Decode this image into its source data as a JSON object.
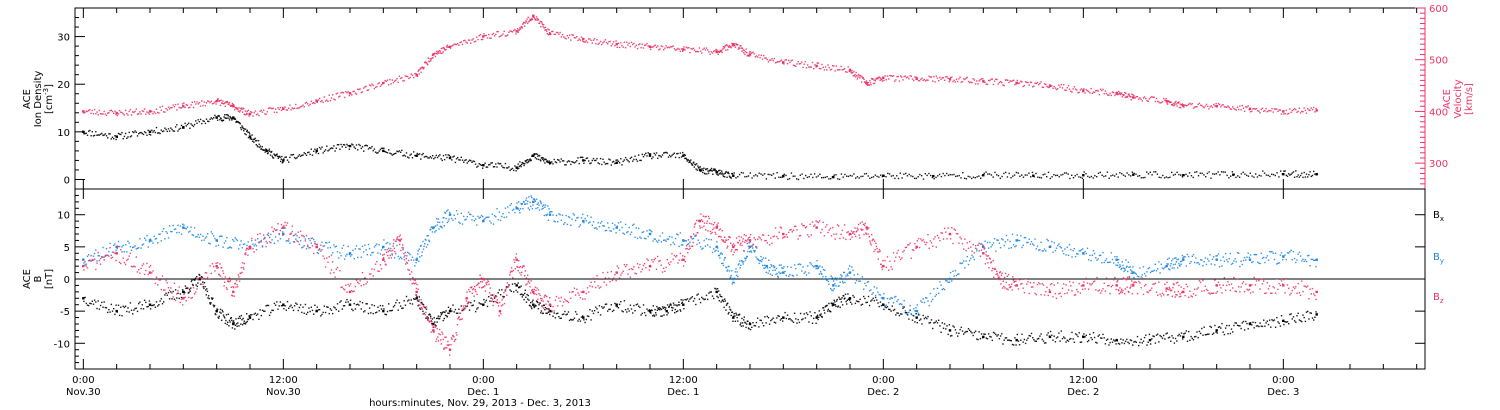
{
  "figure": {
    "x_caption": "hours:minutes, Nov. 29, 2013 - Dec. 3, 2013"
  },
  "colors": {
    "axis": "#000000",
    "black_series": "#000000",
    "blue_series": "#1e88e5",
    "pink_series": "#ee3366"
  },
  "chart_data": [
    {
      "type": "scatter",
      "panel": "top",
      "ylabel_lines": [
        "ACE",
        "Ion Density",
        "[cm^-3]"
      ],
      "ylim": [
        -2,
        36
      ],
      "yticks": [
        0,
        10,
        20,
        30
      ],
      "right_axis": {
        "label_lines": [
          "ACE",
          "Velocity",
          "[km/s]"
        ],
        "ylim": [
          250,
          600
        ],
        "yticks": [
          300,
          400,
          500,
          600
        ],
        "color": "#ee3366"
      },
      "x_unit": "hours since Nov. 30 00:00",
      "xlim": [
        -0.5,
        80.5
      ],
      "series": [
        {
          "axis": "left",
          "color": "#000000",
          "points": [
            [
              0,
              10
            ],
            [
              2,
              9
            ],
            [
              4,
              10
            ],
            [
              6,
              11
            ],
            [
              8,
              13
            ],
            [
              9,
              13
            ],
            [
              10,
              9
            ],
            [
              11,
              6
            ],
            [
              12,
              4
            ],
            [
              14,
              6
            ],
            [
              16,
              7
            ],
            [
              18,
              6
            ],
            [
              20,
              5
            ],
            [
              22,
              4.5
            ],
            [
              24,
              3
            ],
            [
              26,
              2.5
            ],
            [
              27,
              5
            ],
            [
              28,
              3.5
            ],
            [
              30,
              4
            ],
            [
              32,
              3.5
            ],
            [
              34,
              5
            ],
            [
              36,
              5
            ],
            [
              37,
              2
            ],
            [
              38,
              1.5
            ],
            [
              39,
              0.8
            ],
            [
              42,
              0.7
            ],
            [
              45,
              0.5
            ],
            [
              48,
              0.8
            ],
            [
              51,
              0.7
            ],
            [
              54,
              0.9
            ],
            [
              57,
              0.8
            ],
            [
              60,
              0.9
            ],
            [
              63,
              1
            ],
            [
              66,
              0.9
            ],
            [
              69,
              1
            ],
            [
              72,
              1.1
            ],
            [
              74,
              1.1
            ]
          ]
        },
        {
          "axis": "right",
          "color": "#ee3366",
          "points": [
            [
              0,
              400
            ],
            [
              2,
              397
            ],
            [
              4,
              400
            ],
            [
              6,
              410
            ],
            [
              8,
              420
            ],
            [
              9,
              410
            ],
            [
              10,
              395
            ],
            [
              12,
              405
            ],
            [
              14,
              420
            ],
            [
              16,
              435
            ],
            [
              18,
              455
            ],
            [
              20,
              470
            ],
            [
              21,
              510
            ],
            [
              22,
              525
            ],
            [
              24,
              545
            ],
            [
              26,
              555
            ],
            [
              27,
              585
            ],
            [
              28,
              550
            ],
            [
              30,
              540
            ],
            [
              32,
              530
            ],
            [
              34,
              525
            ],
            [
              36,
              520
            ],
            [
              38,
              515
            ],
            [
              39,
              530
            ],
            [
              40,
              510
            ],
            [
              42,
              495
            ],
            [
              44,
              488
            ],
            [
              46,
              480
            ],
            [
              47,
              455
            ],
            [
              48,
              465
            ],
            [
              50,
              463
            ],
            [
              52,
              462
            ],
            [
              54,
              458
            ],
            [
              56,
              455
            ],
            [
              58,
              450
            ],
            [
              60,
              440
            ],
            [
              62,
              435
            ],
            [
              63,
              427
            ],
            [
              65,
              420
            ],
            [
              66,
              411
            ],
            [
              68,
              410
            ],
            [
              70,
              405
            ],
            [
              72,
              400
            ],
            [
              74,
              402
            ]
          ]
        }
      ]
    },
    {
      "type": "scatter",
      "panel": "bottom",
      "ylabel_lines": [
        "ACE",
        "B",
        "[nT]"
      ],
      "ylim": [
        -14,
        14
      ],
      "yticks": [
        -10,
        -5,
        0,
        5,
        10
      ],
      "x_unit": "hours since Nov. 30 00:00",
      "xlim": [
        -0.5,
        80.5
      ],
      "xticks": [
        {
          "x": 0,
          "time": "0:00",
          "date": "Nov.30"
        },
        {
          "x": 12,
          "time": "12:00",
          "date": "Nov.30"
        },
        {
          "x": 24,
          "time": "0:00",
          "date": "Dec. 1"
        },
        {
          "x": 36,
          "time": "12:00",
          "date": "Dec. 1"
        },
        {
          "x": 48,
          "time": "0:00",
          "date": "Dec. 2"
        },
        {
          "x": 60,
          "time": "12:00",
          "date": "Dec. 2"
        },
        {
          "x": 72,
          "time": "0:00",
          "date": "Dec. 3"
        }
      ],
      "zero_line": 0,
      "legend_position": "right",
      "series": [
        {
          "name": "B_x",
          "label_main": "B",
          "label_sub": "x",
          "color": "#000000",
          "points": [
            [
              0,
              -3
            ],
            [
              2,
              -5
            ],
            [
              4,
              -4
            ],
            [
              6,
              -2
            ],
            [
              7,
              0
            ],
            [
              8,
              -5
            ],
            [
              9,
              -7
            ],
            [
              10,
              -6
            ],
            [
              12,
              -4
            ],
            [
              14,
              -5
            ],
            [
              16,
              -4
            ],
            [
              18,
              -5
            ],
            [
              20,
              -3
            ],
            [
              21,
              -7
            ],
            [
              22,
              -5
            ],
            [
              24,
              -4
            ],
            [
              26,
              -1
            ],
            [
              27,
              -4
            ],
            [
              28,
              -5
            ],
            [
              30,
              -6
            ],
            [
              32,
              -4
            ],
            [
              34,
              -5
            ],
            [
              35,
              -5
            ],
            [
              36,
              -4
            ],
            [
              38,
              -2
            ],
            [
              39,
              -6
            ],
            [
              40,
              -7
            ],
            [
              42,
              -6
            ],
            [
              44,
              -6
            ],
            [
              45,
              -4
            ],
            [
              46,
              -3
            ],
            [
              48,
              -4
            ],
            [
              50,
              -6
            ],
            [
              52,
              -8
            ],
            [
              54,
              -9
            ],
            [
              56,
              -9.5
            ],
            [
              58,
              -9
            ],
            [
              60,
              -9
            ],
            [
              62,
              -9.5
            ],
            [
              64,
              -9.5
            ],
            [
              66,
              -9
            ],
            [
              68,
              -8
            ],
            [
              70,
              -7
            ],
            [
              72,
              -6.5
            ],
            [
              74,
              -5.5
            ]
          ]
        },
        {
          "name": "B_y",
          "label_main": "B",
          "label_sub": "y",
          "color": "#1e88e5",
          "points": [
            [
              0,
              3
            ],
            [
              2,
              5
            ],
            [
              4,
              6
            ],
            [
              6,
              8
            ],
            [
              8,
              6
            ],
            [
              10,
              5
            ],
            [
              12,
              7
            ],
            [
              14,
              5
            ],
            [
              16,
              4
            ],
            [
              18,
              5
            ],
            [
              20,
              3
            ],
            [
              21,
              8
            ],
            [
              22,
              10
            ],
            [
              24,
              9
            ],
            [
              26,
              11
            ],
            [
              27,
              12
            ],
            [
              28,
              10
            ],
            [
              30,
              9
            ],
            [
              32,
              8
            ],
            [
              34,
              7
            ],
            [
              36,
              6
            ],
            [
              38,
              5
            ],
            [
              39,
              0
            ],
            [
              40,
              5
            ],
            [
              41,
              2
            ],
            [
              42,
              1
            ],
            [
              44,
              2
            ],
            [
              45,
              -1
            ],
            [
              46,
              1
            ],
            [
              48,
              -3
            ],
            [
              50,
              -5
            ],
            [
              52,
              0
            ],
            [
              54,
              5
            ],
            [
              56,
              6
            ],
            [
              58,
              5
            ],
            [
              60,
              4
            ],
            [
              62,
              3
            ],
            [
              63,
              1
            ],
            [
              65,
              2
            ],
            [
              66,
              3
            ],
            [
              68,
              3
            ],
            [
              70,
              3
            ],
            [
              72,
              3.5
            ],
            [
              74,
              3
            ]
          ]
        },
        {
          "name": "B_z",
          "label_main": "B",
          "label_sub": "z",
          "color": "#ee3366",
          "points": [
            [
              0,
              2
            ],
            [
              2,
              4
            ],
            [
              4,
              1
            ],
            [
              6,
              -3
            ],
            [
              8,
              2
            ],
            [
              9,
              -2
            ],
            [
              10,
              5
            ],
            [
              12,
              8
            ],
            [
              14,
              5
            ],
            [
              16,
              -2
            ],
            [
              18,
              3
            ],
            [
              19,
              6
            ],
            [
              20,
              -2
            ],
            [
              21,
              -8
            ],
            [
              22,
              -11
            ],
            [
              23,
              -3
            ],
            [
              24,
              0
            ],
            [
              25,
              -5
            ],
            [
              26,
              3
            ],
            [
              27,
              -2
            ],
            [
              28,
              -4
            ],
            [
              30,
              -2
            ],
            [
              32,
              1
            ],
            [
              34,
              2
            ],
            [
              36,
              3
            ],
            [
              37,
              9
            ],
            [
              38,
              8
            ],
            [
              39,
              5
            ],
            [
              40,
              6
            ],
            [
              42,
              7
            ],
            [
              44,
              8
            ],
            [
              46,
              7
            ],
            [
              47,
              8
            ],
            [
              48,
              2
            ],
            [
              50,
              5
            ],
            [
              52,
              7
            ],
            [
              54,
              4
            ],
            [
              55,
              0
            ],
            [
              56,
              -1
            ],
            [
              58,
              -2
            ],
            [
              60,
              -1
            ],
            [
              62,
              -1
            ],
            [
              63,
              -1
            ],
            [
              65,
              -1.5
            ],
            [
              66,
              -2
            ],
            [
              68,
              -1
            ],
            [
              70,
              -1
            ],
            [
              72,
              -1
            ],
            [
              74,
              -2
            ]
          ]
        }
      ]
    }
  ]
}
